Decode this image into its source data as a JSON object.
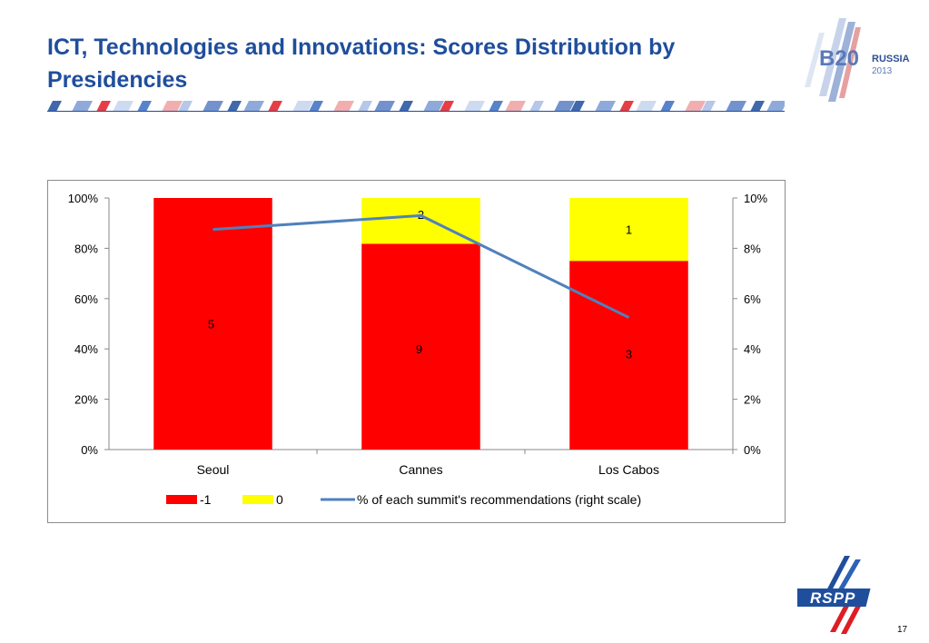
{
  "slide": {
    "title": "ICT, Technologies and Innovations: Scores Distribution by Presidencies",
    "page_number": "17",
    "logo_b20": {
      "mark": "B20",
      "country": "RUSSIA",
      "year": "2013"
    },
    "logo_rspp": {
      "mark": "RSPP"
    }
  },
  "colors": {
    "title": "#1f4e9c",
    "neg": "#ff0000",
    "zero": "#ffff00",
    "line": "#4f81bd"
  },
  "chart_data": {
    "type": "bar",
    "stacked": true,
    "categories": [
      "Seoul",
      "Cannes",
      "Los Cabos"
    ],
    "series": [
      {
        "name": "-1",
        "values": [
          1.0,
          0.818,
          0.75
        ],
        "labels": [
          "5",
          "9",
          "3"
        ],
        "color": "#ff0000"
      },
      {
        "name": "0",
        "values": [
          0.0,
          0.182,
          0.25
        ],
        "labels": [
          "",
          "2",
          "1"
        ],
        "color": "#ffff00"
      }
    ],
    "line_series": {
      "name": "% of each summit's recommendations (right scale)",
      "values": [
        8.75,
        9.3,
        5.25
      ],
      "color": "#4f81bd"
    },
    "y_left": {
      "ticks": [
        "0%",
        "20%",
        "40%",
        "60%",
        "80%",
        "100%"
      ],
      "ylim": [
        0,
        1
      ]
    },
    "y_right": {
      "ticks": [
        "0%",
        "2%",
        "4%",
        "6%",
        "8%",
        "10%"
      ],
      "ylim": [
        0,
        10
      ]
    },
    "legend_position": "bottom",
    "grid": false
  }
}
